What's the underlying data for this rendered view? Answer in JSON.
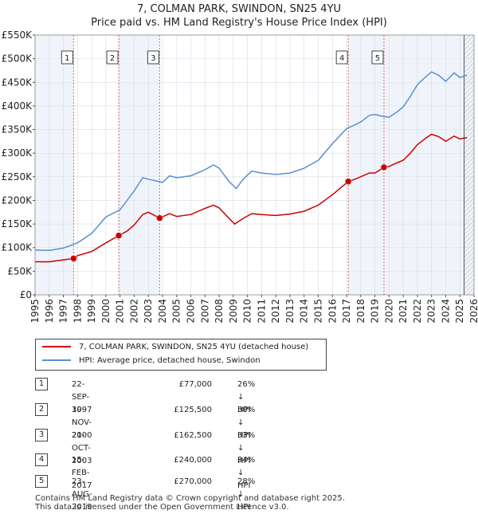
{
  "title_line1": "7, COLMAN PARK, SWINDON, SN25 4YU",
  "title_line2": "Price paid vs. HM Land Registry's House Price Index (HPI)",
  "chart_data": {
    "type": "line",
    "y_ticks": [
      "£0",
      "£50K",
      "£100K",
      "£150K",
      "£200K",
      "£250K",
      "£300K",
      "£350K",
      "£400K",
      "£450K",
      "£500K",
      "£550K"
    ],
    "y_tick_values": [
      0,
      50000,
      100000,
      150000,
      200000,
      250000,
      300000,
      350000,
      400000,
      450000,
      500000,
      550000
    ],
    "ylim": [
      0,
      550000
    ],
    "x_ticks": [
      "1995",
      "1996",
      "1997",
      "1998",
      "1999",
      "2000",
      "2001",
      "2002",
      "2003",
      "2004",
      "2005",
      "2006",
      "2007",
      "2008",
      "2009",
      "2010",
      "2011",
      "2012",
      "2013",
      "2014",
      "2015",
      "2016",
      "2017",
      "2018",
      "2019",
      "2020",
      "2021",
      "2022",
      "2023",
      "2024",
      "2025",
      "2026"
    ],
    "xlim": [
      1995,
      2026
    ],
    "grid": true,
    "projection_start": 2025.3,
    "series": [
      {
        "name": "HPI: Average price, detached house, Swindon",
        "color": "#5b8fd1",
        "points": [
          [
            1995,
            95000
          ],
          [
            1996,
            94000
          ],
          [
            1997,
            99000
          ],
          [
            1998,
            110000
          ],
          [
            1999,
            130000
          ],
          [
            2000,
            165000
          ],
          [
            2001,
            180000
          ],
          [
            2002,
            220000
          ],
          [
            2002.6,
            248000
          ],
          [
            2003,
            245000
          ],
          [
            2004,
            238000
          ],
          [
            2004.5,
            252000
          ],
          [
            2005,
            248000
          ],
          [
            2006,
            252000
          ],
          [
            2007,
            265000
          ],
          [
            2007.6,
            275000
          ],
          [
            2008,
            268000
          ],
          [
            2008.7,
            240000
          ],
          [
            2009.2,
            225000
          ],
          [
            2009.7,
            245000
          ],
          [
            2010.3,
            262000
          ],
          [
            2011,
            258000
          ],
          [
            2012,
            255000
          ],
          [
            2013,
            258000
          ],
          [
            2014,
            268000
          ],
          [
            2015,
            285000
          ],
          [
            2016,
            320000
          ],
          [
            2017,
            352000
          ],
          [
            2017.6,
            360000
          ],
          [
            2018,
            366000
          ],
          [
            2018.6,
            380000
          ],
          [
            2019,
            382000
          ],
          [
            2019.5,
            378000
          ],
          [
            2020,
            376000
          ],
          [
            2020.6,
            388000
          ],
          [
            2021,
            398000
          ],
          [
            2021.5,
            420000
          ],
          [
            2022,
            445000
          ],
          [
            2022.6,
            462000
          ],
          [
            2023,
            472000
          ],
          [
            2023.5,
            465000
          ],
          [
            2024,
            452000
          ],
          [
            2024.6,
            470000
          ],
          [
            2025,
            460000
          ],
          [
            2025.5,
            465000
          ]
        ]
      },
      {
        "name": "7, COLMAN PARK, SWINDON, SN25 4YU (detached house)",
        "color": "#cc0000",
        "points": [
          [
            1995,
            70000
          ],
          [
            1996,
            70000
          ],
          [
            1997,
            74000
          ],
          [
            1997.72,
            77000
          ],
          [
            1998,
            83000
          ],
          [
            1999,
            92000
          ],
          [
            2000,
            110000
          ],
          [
            2000.91,
            125500
          ],
          [
            2001.5,
            135000
          ],
          [
            2002,
            148000
          ],
          [
            2002.6,
            170000
          ],
          [
            2003,
            175000
          ],
          [
            2003.8,
            162500
          ],
          [
            2004.5,
            172000
          ],
          [
            2005,
            166000
          ],
          [
            2006,
            170000
          ],
          [
            2007,
            183000
          ],
          [
            2007.6,
            190000
          ],
          [
            2008,
            184000
          ],
          [
            2008.6,
            165000
          ],
          [
            2009.1,
            150000
          ],
          [
            2009.7,
            162000
          ],
          [
            2010.3,
            172000
          ],
          [
            2011,
            170000
          ],
          [
            2012,
            168000
          ],
          [
            2013,
            171000
          ],
          [
            2014,
            177000
          ],
          [
            2015,
            190000
          ],
          [
            2016,
            212000
          ],
          [
            2017.12,
            240000
          ],
          [
            2017.6,
            245000
          ],
          [
            2018,
            250000
          ],
          [
            2018.6,
            258000
          ],
          [
            2019,
            258000
          ],
          [
            2019.64,
            270000
          ],
          [
            2020,
            272000
          ],
          [
            2020.6,
            280000
          ],
          [
            2021,
            285000
          ],
          [
            2021.5,
            300000
          ],
          [
            2022,
            318000
          ],
          [
            2022.6,
            332000
          ],
          [
            2023,
            340000
          ],
          [
            2023.5,
            335000
          ],
          [
            2024,
            325000
          ],
          [
            2024.6,
            336000
          ],
          [
            2025,
            330000
          ],
          [
            2025.5,
            333000
          ]
        ]
      }
    ],
    "sales": [
      {
        "label": "1",
        "x": 1997.72,
        "price": 77000
      },
      {
        "label": "2",
        "x": 2000.91,
        "price": 125500
      },
      {
        "label": "3",
        "x": 2003.8,
        "price": 162500
      },
      {
        "label": "4",
        "x": 2017.12,
        "price": 240000
      },
      {
        "label": "5",
        "x": 2019.64,
        "price": 270000
      }
    ]
  },
  "legend": {
    "property_label": "7, COLMAN PARK, SWINDON, SN25 4YU (detached house)",
    "hpi_label": "HPI: Average price, detached house, Swindon",
    "property_color": "#cc0000",
    "hpi_color": "#5b8fd1"
  },
  "transactions": [
    {
      "num": "1",
      "date": "22-SEP-1997",
      "price": "£77,000",
      "diff": "26% ↓ HPI"
    },
    {
      "num": "2",
      "date": "30-NOV-2000",
      "price": "£125,500",
      "diff": "30% ↓ HPI"
    },
    {
      "num": "3",
      "date": "21-OCT-2003",
      "price": "£162,500",
      "diff": "33% ↓ HPI"
    },
    {
      "num": "4",
      "date": "15-FEB-2017",
      "price": "£240,000",
      "diff": "34% ↓ HPI"
    },
    {
      "num": "5",
      "date": "23-AUG-2019",
      "price": "£270,000",
      "diff": "28% ↓ HPI"
    }
  ],
  "footer_line1": "Contains HM Land Registry data © Crown copyright and database right 2025.",
  "footer_line2": "This data is licensed under the Open Government Licence v3.0."
}
